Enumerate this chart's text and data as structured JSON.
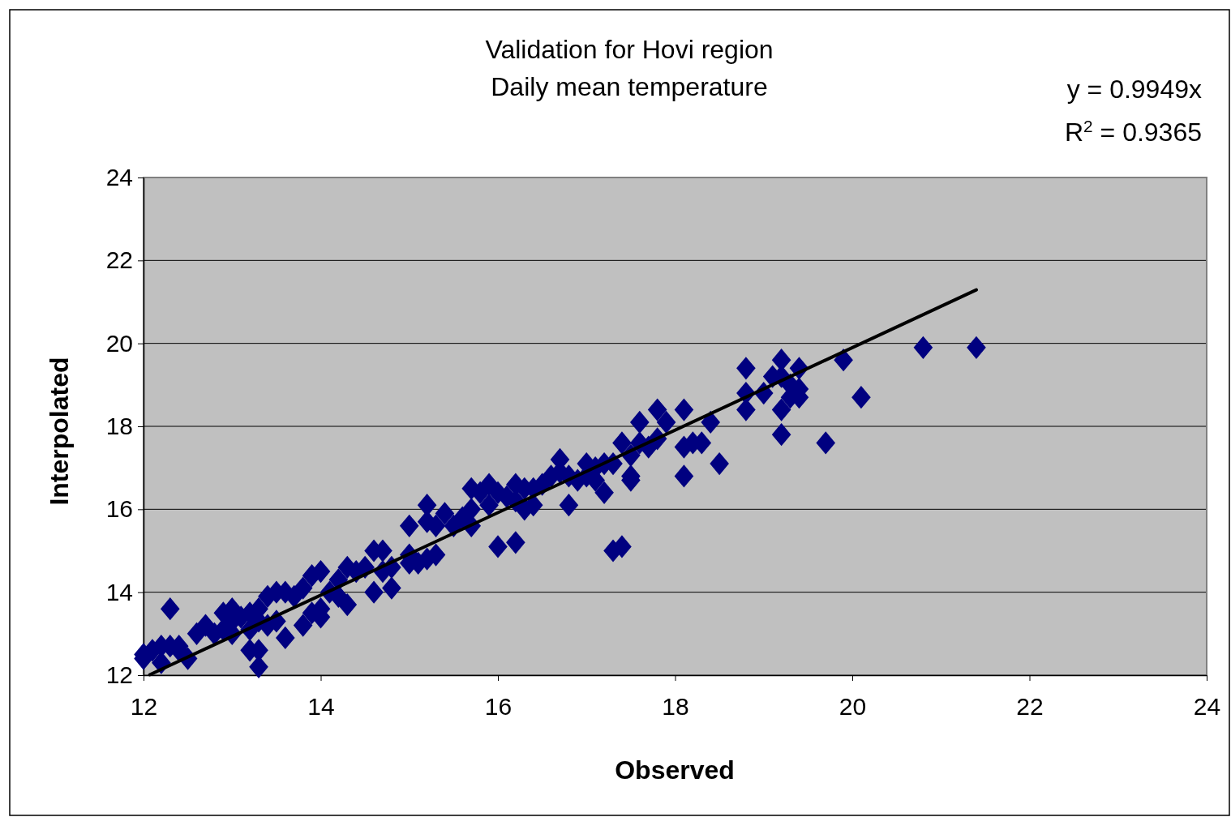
{
  "chart_data": {
    "type": "scatter",
    "title": "Validation for Hovi region",
    "subtitle": "Daily mean temperature",
    "xlabel": "Observed",
    "ylabel": "Interpolated",
    "annotations": [
      "y = 0.9949x",
      "R$^{2}$ = 0.9365"
    ],
    "xlim": [
      12,
      24
    ],
    "xticks": [
      12,
      14,
      16,
      18,
      20,
      22,
      24
    ],
    "ylim": [
      12,
      24
    ],
    "yticks": [
      12,
      14,
      16,
      18,
      20,
      22,
      24
    ],
    "grid": "y",
    "marker": "diamond",
    "series": [
      {
        "color": "#000080",
        "x": [
          12.0,
          12.0,
          12.1,
          12.2,
          12.2,
          12.3,
          12.3,
          12.4,
          12.4,
          12.5,
          12.6,
          12.7,
          12.8,
          12.9,
          12.9,
          13.0,
          13.0,
          13.0,
          13.1,
          13.2,
          13.2,
          13.2,
          13.3,
          13.3,
          13.3,
          13.3,
          13.4,
          13.4,
          13.5,
          13.5,
          13.6,
          13.6,
          13.7,
          13.8,
          13.8,
          13.9,
          13.9,
          14.0,
          14.0,
          14.0,
          14.1,
          14.2,
          14.2,
          14.3,
          14.3,
          14.4,
          14.5,
          14.6,
          14.6,
          14.7,
          14.7,
          14.8,
          14.8,
          15.0,
          15.0,
          15.0,
          15.1,
          15.2,
          15.2,
          15.2,
          15.3,
          15.3,
          15.4,
          15.5,
          15.6,
          15.7,
          15.7,
          15.7,
          15.8,
          15.9,
          15.9,
          16.0,
          16.0,
          16.1,
          16.2,
          16.2,
          16.2,
          16.3,
          16.3,
          16.4,
          16.4,
          16.5,
          16.6,
          16.7,
          16.7,
          16.8,
          16.8,
          16.9,
          17.0,
          17.0,
          17.1,
          17.1,
          17.2,
          17.2,
          17.3,
          17.3,
          17.4,
          17.4,
          17.5,
          17.5,
          17.5,
          17.6,
          17.6,
          17.7,
          17.8,
          17.8,
          17.9,
          18.1,
          18.1,
          18.1,
          18.2,
          18.3,
          18.4,
          18.5,
          18.8,
          18.8,
          18.8,
          19.0,
          19.1,
          19.2,
          19.2,
          19.2,
          19.2,
          19.3,
          19.3,
          19.4,
          19.4,
          19.4,
          19.7,
          19.9,
          20.1,
          20.8,
          21.4
        ],
        "values": [
          12.5,
          12.4,
          12.6,
          12.7,
          12.3,
          13.6,
          12.7,
          12.6,
          12.7,
          12.4,
          13.0,
          13.2,
          13.0,
          13.5,
          13.1,
          13.6,
          13.3,
          13.0,
          13.4,
          13.5,
          13.1,
          12.6,
          13.6,
          13.3,
          12.6,
          12.2,
          13.9,
          13.2,
          14.0,
          13.3,
          14.0,
          12.9,
          13.9,
          14.1,
          13.2,
          14.4,
          13.5,
          14.5,
          13.6,
          13.4,
          14.0,
          14.3,
          13.9,
          14.6,
          13.7,
          14.5,
          14.6,
          15.0,
          14.0,
          15.0,
          14.5,
          14.6,
          14.1,
          15.6,
          14.9,
          14.7,
          14.7,
          16.1,
          15.7,
          14.8,
          15.6,
          14.9,
          15.9,
          15.6,
          15.8,
          16.5,
          16.0,
          15.6,
          16.4,
          16.6,
          16.1,
          16.4,
          15.1,
          16.3,
          16.6,
          16.2,
          15.2,
          16.5,
          16.0,
          16.5,
          16.1,
          16.6,
          16.8,
          17.2,
          16.9,
          16.8,
          16.1,
          16.7,
          17.1,
          16.8,
          17.0,
          16.7,
          17.1,
          16.4,
          17.1,
          15.0,
          17.6,
          15.1,
          17.3,
          16.8,
          16.7,
          18.1,
          17.6,
          17.5,
          18.4,
          17.7,
          18.1,
          18.4,
          17.5,
          16.8,
          17.6,
          17.6,
          18.1,
          17.1,
          19.4,
          18.8,
          18.4,
          18.8,
          19.2,
          19.6,
          19.2,
          18.4,
          17.8,
          19.0,
          18.7,
          19.4,
          18.9,
          18.7,
          17.6,
          19.6,
          18.7,
          19.9,
          19.9
        ]
      },
      {
        "type": "line",
        "color": "#000000",
        "marker": "none",
        "x": [
          12.07,
          21.4
        ],
        "values": [
          12.01,
          21.29
        ]
      }
    ]
  }
}
